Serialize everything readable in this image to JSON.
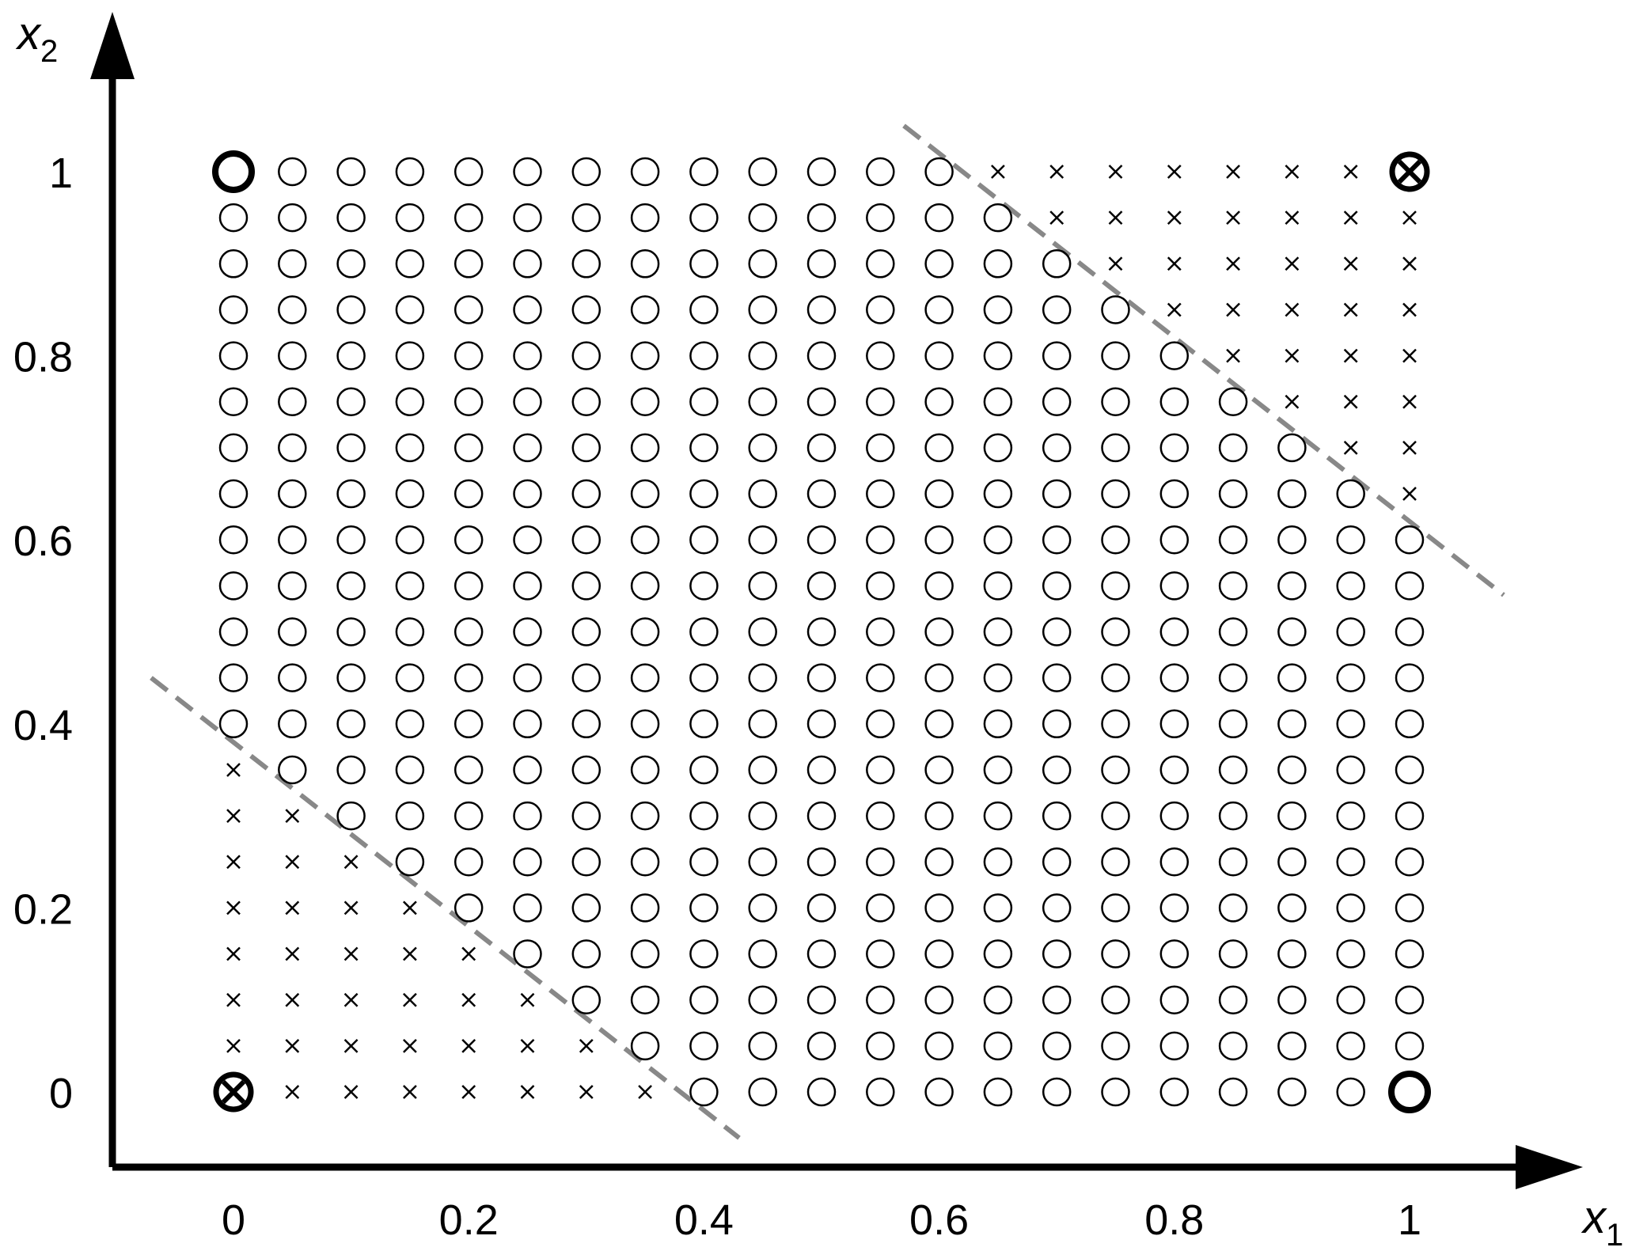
{
  "chart_data": {
    "type": "scatter",
    "title": "",
    "xlabel": "x",
    "xlabel_subscript": "1",
    "ylabel": "x",
    "ylabel_subscript": "2",
    "x_ticks": [
      "0",
      "0.2",
      "0.4",
      "0.6",
      "0.8",
      "1"
    ],
    "y_ticks": [
      "0",
      "0.2",
      "0.4",
      "0.6",
      "0.8",
      "1"
    ],
    "xlim": [
      -0.2,
      1.22
    ],
    "ylim": [
      -0.08,
      1.18
    ],
    "grid": false,
    "grid_points": {
      "x_start": 0,
      "x_end": 1,
      "x_step": 0.05,
      "y_start": 0,
      "y_end": 1,
      "y_step": 0.05,
      "rule": "x for |x1 + x2 - 1| > 0.6, otherwise o"
    },
    "series": [
      {
        "marker": "o",
        "color": "#000000",
        "points": "grid points with |x1 + x2 - 1| <= 0.6"
      },
      {
        "marker": "x",
        "color": "#000000",
        "points": "grid points with |x1 + x2 - 1| > 0.6"
      },
      {
        "marker": "o (bold)",
        "color": "#000000",
        "points": [
          [
            0,
            1
          ],
          [
            1,
            0
          ]
        ]
      },
      {
        "marker": "circled x (bold)",
        "color": "#000000",
        "points": [
          [
            0,
            0
          ],
          [
            1,
            1
          ]
        ]
      }
    ],
    "boundaries": [
      {
        "style": "dashed",
        "color": "#888888",
        "x1_plus_x2": 0.38,
        "from": [
          -0.07,
          0.45
        ],
        "to": [
          0.43,
          -0.05
        ]
      },
      {
        "style": "dashed",
        "color": "#888888",
        "x1_plus_x2": 1.62,
        "from": [
          0.57,
          1.05
        ],
        "to": [
          1.08,
          0.54
        ]
      }
    ]
  }
}
